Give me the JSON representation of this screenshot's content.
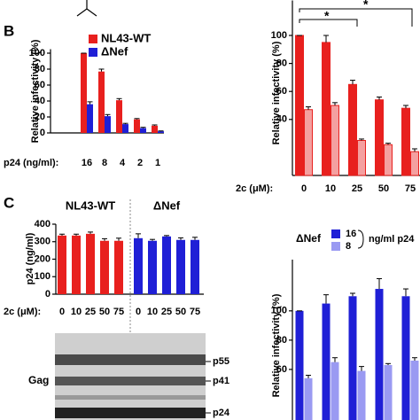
{
  "panels": [
    "B",
    "C"
  ],
  "gel": {
    "row_label": "Gag",
    "bands": [
      "p55",
      "p41",
      "p24"
    ]
  },
  "chart_data": [
    {
      "type": "bar",
      "ylabel": "Relative infectivity (%)",
      "xlabel": "p24 (ng/ml):",
      "categories": [
        "16",
        "8",
        "4",
        "2",
        "1"
      ],
      "ylim": [
        0,
        105
      ],
      "yticks": [
        0,
        20,
        40,
        60,
        80,
        100
      ],
      "legend": "top-left",
      "series": [
        {
          "name": "NL43-WT",
          "color": "#e8201e",
          "values": [
            100,
            77,
            41,
            17,
            9
          ],
          "errors": [
            0,
            3,
            2,
            1,
            1
          ]
        },
        {
          "name": "ΔNef",
          "color": "#1f1fd6",
          "values": [
            36,
            21,
            11,
            6,
            2
          ],
          "errors": [
            3,
            2,
            1,
            1,
            0.5
          ]
        }
      ]
    },
    {
      "type": "bar",
      "ylabel": "Relative infectivity (%)",
      "xlabel": "2c (μM):",
      "categories": [
        "0",
        "10",
        "25",
        "50",
        "75"
      ],
      "ylim": [
        0,
        125
      ],
      "yticks": [
        40,
        60,
        80,
        100
      ],
      "annotations": [
        "*",
        "*"
      ],
      "series": [
        {
          "color": "#e8201e",
          "values": [
            100,
            95,
            65,
            54,
            48
          ],
          "errors": [
            0,
            5,
            3,
            2,
            2
          ]
        },
        {
          "color": "#f4a0a0",
          "values": [
            47,
            50,
            25,
            22,
            17
          ],
          "errors": [
            2,
            2,
            1,
            1,
            2
          ]
        }
      ]
    },
    {
      "type": "bar",
      "ylabel": "p24 (ng/ml)",
      "xlabel": "2c (μM):",
      "categories": [
        "0",
        "10",
        "25",
        "50",
        "75"
      ],
      "ylim": [
        0,
        400
      ],
      "yticks": [
        0,
        100,
        200,
        300,
        400
      ],
      "series": [
        {
          "name": "NL43-WT",
          "color": "#e8201e",
          "values": [
            335,
            335,
            345,
            305,
            305
          ],
          "errors": [
            8,
            8,
            10,
            12,
            15
          ]
        },
        {
          "name": "ΔNef",
          "color": "#1f1fd6",
          "values": [
            320,
            305,
            330,
            310,
            310
          ],
          "errors": [
            25,
            8,
            5,
            12,
            15
          ]
        }
      ]
    },
    {
      "type": "bar",
      "ylabel": "Relative infectivity (%)",
      "legend_title": "ΔNef",
      "legend_unit": "ng/ml p24",
      "ylim": [
        25,
        135
      ],
      "yticks": [
        60,
        80,
        100
      ],
      "series": [
        {
          "name": "16",
          "color": "#1f1fd6",
          "values": [
            100,
            105,
            110,
            115,
            110
          ],
          "errors": [
            0,
            6,
            2,
            7,
            5
          ]
        },
        {
          "name": "8",
          "color": "#9a9af2",
          "values": [
            54,
            65,
            59,
            63,
            66
          ],
          "errors": [
            2,
            3,
            3,
            1,
            2
          ]
        }
      ]
    }
  ]
}
